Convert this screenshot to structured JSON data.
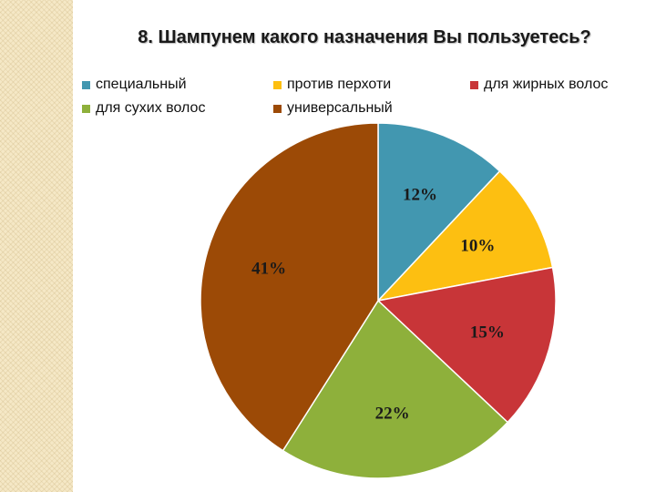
{
  "chart_data": {
    "type": "pie",
    "title": "8.  Шампунем какого назначения Вы пользуетесь?",
    "categories": [
      "специальный",
      "против перхоти",
      "для жирных волос",
      "для сухих волос",
      "универсальный"
    ],
    "values": [
      12,
      10,
      15,
      22,
      41
    ],
    "labels": [
      "12%",
      "10%",
      "15%",
      "22%",
      "41%"
    ],
    "colors": [
      "#4297b0",
      "#fdbf11",
      "#c83538",
      "#8eb03b",
      "#9c4a06"
    ],
    "legend_position": "top",
    "start_angle_deg": 0,
    "direction": "clockwise"
  }
}
